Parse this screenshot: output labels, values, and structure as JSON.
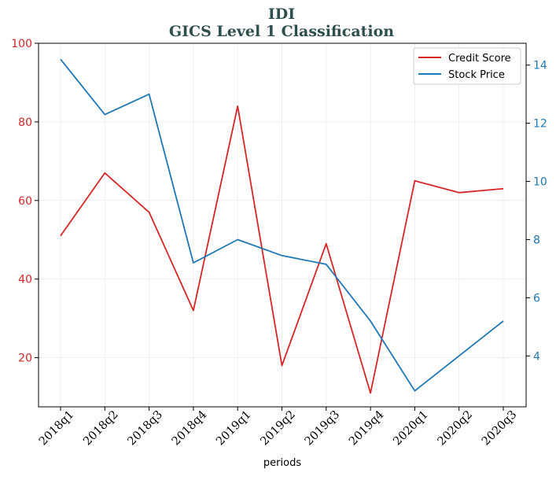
{
  "chart_data": {
    "type": "line",
    "title": "IDI",
    "subtitle": "GICS Level 1 Classification",
    "xlabel": "periods",
    "ylabel_left": "",
    "ylabel_right": "",
    "categories": [
      "2018q1",
      "2018q2",
      "2018q3",
      "2018q4",
      "2019q1",
      "2019q2",
      "2019q3",
      "2019q4",
      "2020q1",
      "2020q2",
      "2020q3"
    ],
    "series": [
      {
        "name": "Credit Score",
        "axis": "left",
        "color": "#d62728",
        "values": [
          51,
          67,
          57,
          32,
          84,
          18,
          49,
          11,
          65,
          62,
          63
        ]
      },
      {
        "name": "Stock Price",
        "axis": "right",
        "color": "#1f77b4",
        "values": [
          14.2,
          12.3,
          13.0,
          7.2,
          8.0,
          7.45,
          7.15,
          5.2,
          2.8,
          4.0,
          5.2
        ]
      }
    ],
    "ylim_left": [
      7.5,
      100
    ],
    "yticks_left": [
      20,
      40,
      60,
      80,
      100
    ],
    "ylim_right": [
      2.25,
      14.75
    ],
    "yticks_right": [
      4,
      6,
      8,
      10,
      12,
      14
    ],
    "grid": true,
    "legend_position": "top-right"
  }
}
